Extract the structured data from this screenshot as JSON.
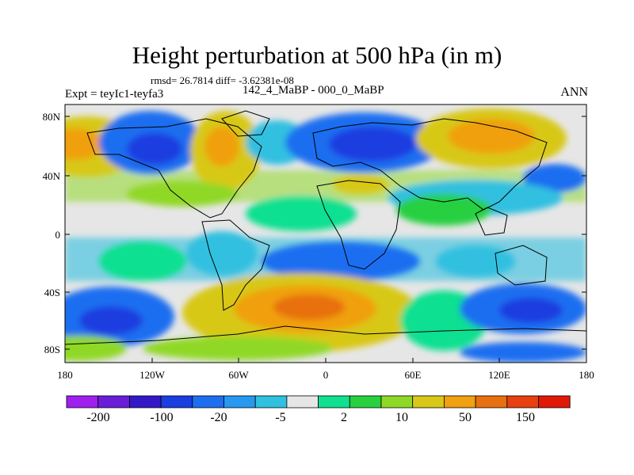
{
  "title": "Height perturbation at 500 hPa (in m)",
  "stats": "rmsd= 26.7814 diff= -3.62381e-08",
  "subtitle": "142_4_MaBP - 000_0_MaBP",
  "expt": "Expt = teyIc1-teyfa3",
  "season": "ANN",
  "lat_ticks": [
    "80N",
    "40N",
    "0",
    "40S",
    "80S"
  ],
  "lon_ticks": [
    "180",
    "120W",
    "60W",
    "0",
    "60E",
    "120E",
    "180"
  ],
  "colorbar": {
    "colors": [
      "#a020f0",
      "#6a1ed8",
      "#3418c8",
      "#1a3ee0",
      "#1e6ef0",
      "#2898f0",
      "#30c0e0",
      "#e6e6e6",
      "#10e090",
      "#28d040",
      "#90d828",
      "#d8c818",
      "#f0a010",
      "#e87010",
      "#e84010",
      "#e01808"
    ],
    "labels": [
      "-200",
      "-100",
      "-20",
      "-5",
      "2",
      "10",
      "50",
      "150"
    ]
  }
}
